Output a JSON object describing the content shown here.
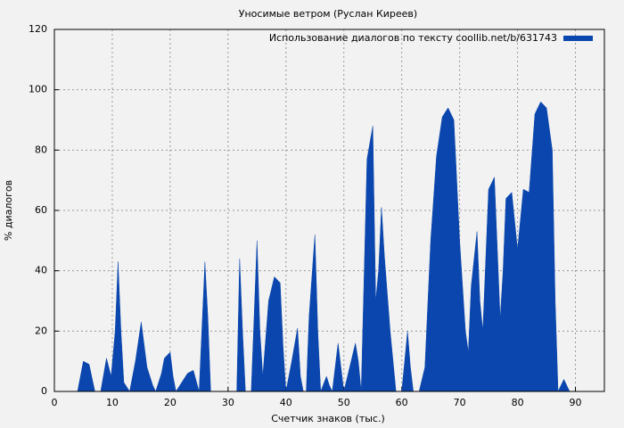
{
  "chart_data": {
    "type": "area",
    "title": "Уносимые ветром (Руслан Киреев)",
    "xlabel": "Счетчик знаков (тыс.)",
    "ylabel": "% диалогов",
    "x": [
      4,
      4.5,
      5,
      6,
      7,
      8,
      9,
      9.8,
      10.5,
      11,
      11.5,
      12,
      13,
      14,
      15,
      16,
      17,
      17.5,
      18.5,
      19,
      20,
      20.5,
      21,
      22,
      23,
      24,
      25,
      26,
      26.5,
      27,
      31.5,
      32,
      32.5,
      33,
      34,
      35,
      35.5,
      36,
      37,
      38,
      39,
      39.5,
      40,
      41,
      42,
      42.5,
      43,
      43.5,
      44,
      45,
      45.5,
      46,
      47,
      47.5,
      48,
      49,
      49.5,
      50,
      51,
      52,
      52.5,
      53,
      54,
      55,
      55.5,
      56,
      56.5,
      57,
      58,
      59,
      60,
      61,
      61.5,
      62,
      63,
      64,
      65,
      66,
      67,
      68,
      69,
      70,
      71,
      71.5,
      72,
      73,
      73.5,
      74,
      75,
      76,
      77,
      77.5,
      78,
      79,
      80,
      81,
      82,
      83,
      84,
      85,
      86,
      86.5,
      87,
      88,
      89,
      90
    ],
    "series": [
      {
        "name": "Использование диалогов по тексту coollib.net/b/631743",
        "color": "#0a46ad",
        "values": [
          0,
          5,
          10,
          9,
          0,
          0,
          11,
          5,
          20,
          43,
          20,
          3,
          0,
          10,
          23,
          8,
          2,
          0,
          6,
          11,
          13,
          5,
          0,
          3,
          6,
          7,
          0,
          43,
          25,
          0,
          0,
          44,
          20,
          0,
          0,
          50,
          20,
          5,
          30,
          38,
          36,
          15,
          0,
          10,
          21,
          5,
          0,
          0,
          25,
          52,
          20,
          0,
          5,
          2,
          0,
          16,
          8,
          0,
          8,
          16,
          10,
          0,
          77,
          88,
          30,
          40,
          61,
          45,
          20,
          0,
          0,
          20,
          8,
          0,
          0,
          8,
          50,
          78,
          91,
          94,
          90,
          50,
          20,
          13,
          35,
          53,
          30,
          20,
          67,
          71,
          24,
          40,
          64,
          66,
          47,
          67,
          66,
          92,
          96,
          94,
          80,
          30,
          0,
          4,
          0,
          0
        ]
      }
    ],
    "xlim": [
      0,
      95
    ],
    "ylim": [
      0,
      120
    ],
    "xticks": [
      0,
      10,
      20,
      30,
      40,
      50,
      60,
      70,
      80,
      90
    ],
    "yticks": [
      0,
      20,
      40,
      60,
      80,
      100,
      120
    ],
    "grid": true,
    "legend": "top-right"
  }
}
